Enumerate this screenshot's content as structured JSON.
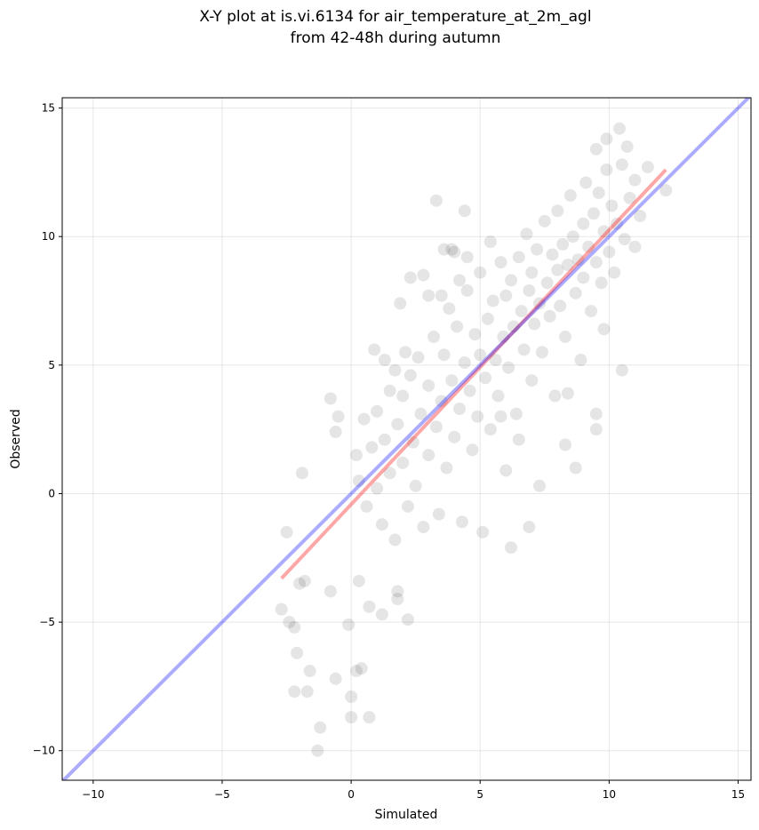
{
  "chart_data": {
    "type": "scatter",
    "title": [
      "X-Y plot at is.vi.6134 for air_temperature_at_2m_agl",
      "from 42-48h during autumn"
    ],
    "xlabel": "Simulated",
    "ylabel": "Observed",
    "xlim": [
      -11.2,
      15.5
    ],
    "ylim": [
      -11.15,
      15.4
    ],
    "xticks": [
      {
        "value": -10,
        "label": "−10"
      },
      {
        "value": -5,
        "label": "−5"
      },
      0,
      5,
      10,
      15
    ],
    "yticks": [
      {
        "value": -10,
        "label": "−10"
      },
      {
        "value": -5,
        "label": "−5"
      },
      0,
      5,
      10,
      15
    ],
    "grid": true,
    "color": "#000000",
    "alpha": 0.1,
    "x": [
      3.3,
      4.4,
      -1.3,
      -1.2,
      0,
      0.7,
      -2.2,
      -1.7,
      0,
      -1.6,
      -0.6,
      0.2,
      0.4,
      -2.1,
      -0.1,
      -2.2,
      -2.4,
      1.2,
      2.2,
      -2.7,
      -1.8,
      -2,
      0.7,
      1.8,
      1.8,
      0.3,
      -0.8,
      -2.5,
      -1.9,
      -0.8,
      -0.5,
      -0.6,
      10.5,
      8.7,
      7.3,
      6.9,
      6.2,
      8.3,
      9.5,
      9.5,
      8.4,
      9.8,
      10.4,
      9.5,
      9.9,
      10.7,
      12.2,
      11,
      2.1,
      1.7,
      1.3,
      2.3,
      2.8,
      3,
      3.6,
      3.9,
      4,
      4.5,
      5.4,
      0.2,
      0.3,
      0.5,
      0.6,
      0.8,
      1,
      1,
      1.2,
      1.3,
      1.5,
      1.5,
      1.7,
      1.8,
      2,
      2,
      2.2,
      2.3,
      2.4,
      2.5,
      2.6,
      2.7,
      2.8,
      3,
      3,
      3.2,
      3.3,
      3.4,
      3.5,
      3.6,
      3.7,
      3.8,
      3.9,
      4,
      4.1,
      4.2,
      4.3,
      4.4,
      4.5,
      4.6,
      4.7,
      4.8,
      4.9,
      5,
      5,
      5.1,
      5.2,
      5.3,
      5.4,
      5.5,
      5.6,
      5.7,
      5.8,
      5.9,
      6,
      6,
      6.1,
      6.2,
      6.3,
      6.4,
      6.5,
      6.6,
      6.7,
      6.8,
      6.9,
      7,
      7,
      7.1,
      7.2,
      7.3,
      7.4,
      7.5,
      7.6,
      7.7,
      7.8,
      7.9,
      8,
      8,
      8.1,
      8.2,
      8.3,
      8.4,
      8.5,
      8.6,
      8.7,
      8.8,
      8.9,
      9,
      9,
      9.1,
      9.2,
      9.3,
      9.4,
      9.5,
      9.6,
      9.7,
      9.8,
      9.9,
      10,
      10.1,
      10.2,
      10.3,
      10.5,
      10.6,
      10.8,
      11,
      11.2,
      11.5,
      3.5,
      4.2,
      5.8,
      6.5,
      1.9,
      0.9
    ],
    "y": [
      11.4,
      11,
      -10,
      -9.1,
      -8.7,
      -8.7,
      -7.7,
      -7.7,
      -7.9,
      -6.9,
      -7.2,
      -6.9,
      -6.8,
      -6.2,
      -5.1,
      -5.2,
      -5,
      -4.7,
      -4.9,
      -4.5,
      -3.4,
      -3.5,
      -4.4,
      -3.8,
      -4.1,
      -3.4,
      -3.8,
      -1.5,
      0.8,
      3.7,
      3,
      2.4,
      4.8,
      1,
      0.3,
      -1.3,
      -2.1,
      1.9,
      2.5,
      3.1,
      3.9,
      6.4,
      14.2,
      13.4,
      13.8,
      13.5,
      11.8,
      9.6,
      5.5,
      4.8,
      5.2,
      8.4,
      8.5,
      7.7,
      9.5,
      9.5,
      9.4,
      9.2,
      9.8,
      1.5,
      0.5,
      2.9,
      -0.5,
      1.8,
      0.2,
      3.2,
      -1.2,
      2.1,
      4,
      0.8,
      -1.8,
      2.7,
      1.2,
      3.8,
      -0.5,
      4.6,
      2,
      0.3,
      5.3,
      3.1,
      -1.3,
      1.5,
      4.2,
      6.1,
      2.6,
      -0.8,
      3.6,
      5.4,
      1,
      7.2,
      4.4,
      2.2,
      6.5,
      3.3,
      -1.1,
      5.1,
      7.9,
      4,
      1.7,
      6.2,
      3,
      5.4,
      8.6,
      -1.5,
      4.5,
      6.8,
      2.5,
      7.5,
      5.2,
      3.8,
      9,
      6.1,
      0.9,
      7.7,
      4.9,
      8.3,
      6.5,
      3.1,
      9.2,
      7.1,
      5.6,
      10.1,
      7.9,
      4.4,
      8.6,
      6.6,
      9.5,
      7.4,
      5.5,
      10.6,
      8.2,
      6.9,
      9.3,
      3.8,
      8.7,
      11,
      7.3,
      9.7,
      6.1,
      8.9,
      11.6,
      10,
      7.8,
      9.1,
      5.2,
      10.5,
      8.4,
      12.1,
      9.6,
      7.1,
      10.9,
      9,
      11.7,
      8.2,
      10.2,
      12.6,
      9.4,
      11.2,
      8.6,
      10.5,
      12.8,
      9.9,
      11.5,
      12.2,
      10.8,
      12.7,
      7.7,
      8.3,
      3,
      2.1,
      7.4,
      5.6
    ],
    "lines": [
      {
        "color": "#ff0000",
        "alpha": 0.35,
        "x": [
          -2.7,
          12.2
        ],
        "y": [
          -3.3,
          12.6
        ]
      },
      {
        "color": "#0000ff",
        "alpha": 0.33,
        "x": [
          -11.2,
          15.5
        ],
        "y": [
          -11.2,
          15.5
        ]
      }
    ]
  }
}
